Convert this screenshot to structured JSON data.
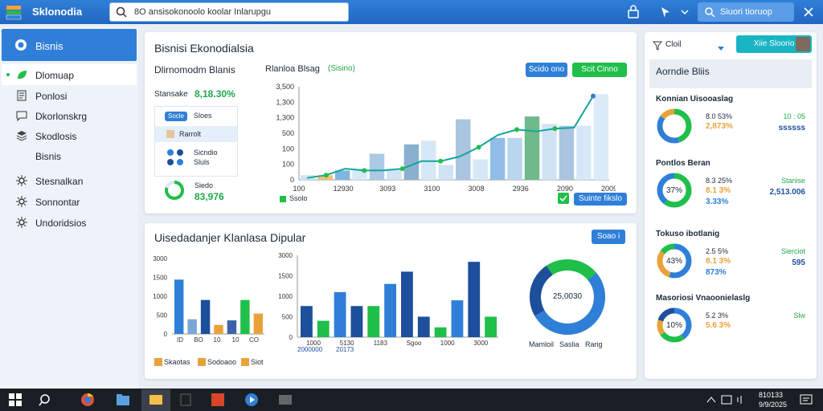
{
  "topbar": {
    "app_title": "Sklonodia",
    "search_text": "8O ansisokonoolo koolar Inlarupgu",
    "search2_text": "Siuori tioruop"
  },
  "sidebar": {
    "header": "Bisnis",
    "items": [
      {
        "label": "Dlomuap",
        "icon": "leaf-icon",
        "active": true
      },
      {
        "label": "Ponlosi",
        "icon": "document-icon"
      },
      {
        "label": "Dkorlonskrg",
        "icon": "chat-icon"
      },
      {
        "label": "Skodlosis",
        "icon": "layers-icon"
      },
      {
        "label": "Bisnis",
        "icon": ""
      },
      {
        "label": "Stesnalkan",
        "icon": "gear-icon"
      },
      {
        "label": "Sonnontar",
        "icon": "gear-icon"
      },
      {
        "label": "Undoridsios",
        "icon": "gear-icon"
      }
    ]
  },
  "card1": {
    "title": "Bisnisi Ekonodialsia",
    "subtitle": "Dlirnomodm Blanis",
    "stat_label": "Stansake",
    "stat_value": "8,18.30%",
    "mini_btn": "Socle",
    "mini_text": "Sloes",
    "row_label": "Rarrolt",
    "row2": "Sicndio",
    "row3": "Sluls",
    "gauge_label": "Siedo",
    "gauge_value": "83,976",
    "chart_title": "Rlanloa Blsag",
    "chart_tag": "(Sisino)",
    "btn_a": "Scido ono",
    "btn_b": "Scit Cinno",
    "legend": "Ssolo",
    "btn_c": "Suinte fikslo",
    "chart": {
      "type": "bar",
      "y_ticks": [
        "0",
        "100",
        "100",
        "500",
        "1,300",
        "1,300",
        "3,500"
      ],
      "x_ticks": [
        "100",
        "12930",
        "3093",
        "3100",
        "3008",
        "2936",
        "2090",
        "2009"
      ],
      "bars": [
        {
          "v": 0.05,
          "c": "#cfe3f5"
        },
        {
          "v": 0.05,
          "c": "#f2c078"
        },
        {
          "v": 0.1,
          "c": "#7fb5e0"
        },
        {
          "v": 0.12,
          "c": "#d6e8f6"
        },
        {
          "v": 0.28,
          "c": "#a9c9e4"
        },
        {
          "v": 0.12,
          "c": "#cfe3f5"
        },
        {
          "v": 0.38,
          "c": "#8ab0cf"
        },
        {
          "v": 0.42,
          "c": "#d6e8f6"
        },
        {
          "v": 0.16,
          "c": "#cfe3f5"
        },
        {
          "v": 0.65,
          "c": "#a9c5df"
        },
        {
          "v": 0.22,
          "c": "#d6e8f6"
        },
        {
          "v": 0.45,
          "c": "#8fbde6"
        },
        {
          "v": 0.45,
          "c": "#b8d6ee"
        },
        {
          "v": 0.68,
          "c": "#70b98a"
        },
        {
          "v": 0.6,
          "c": "#cfe3f5"
        },
        {
          "v": 0.58,
          "c": "#a9c5df"
        },
        {
          "v": 0.58,
          "c": "#d6e8f6"
        },
        {
          "v": 0.92,
          "c": "#dcebf8"
        }
      ],
      "line": [
        0.02,
        0.05,
        0.12,
        0.1,
        0.1,
        0.12,
        0.2,
        0.2,
        0.25,
        0.35,
        0.48,
        0.54,
        0.52,
        0.55,
        0.56,
        0.9
      ]
    }
  },
  "card2": {
    "title": "Uisedadanjer Klanlasa Dipular",
    "btn": "Soao i",
    "legend1": "Skaotas",
    "legend2": "Sodoaoo",
    "legend3": "Siot",
    "left_chart": {
      "y_ticks": [
        "3000",
        "1500",
        "1000",
        "500",
        "0"
      ],
      "x_ticks": [
        "ID",
        "BO",
        "10",
        "10",
        "CO"
      ],
      "bars": [
        {
          "v": 0.48,
          "c": "#2f7fd8"
        },
        {
          "v": 0.13,
          "c": "#7aa7d6"
        },
        {
          "v": 0.3,
          "c": "#1d4f9c"
        },
        {
          "v": 0.08,
          "c": "#e9a23a"
        },
        {
          "v": 0.12,
          "c": "#3d62a8"
        },
        {
          "v": 0.3,
          "c": "#1fbf4a"
        },
        {
          "v": 0.18,
          "c": "#e9a23a"
        }
      ]
    },
    "mid_chart": {
      "y_ticks": [
        "3000",
        "1500",
        "1000",
        "500",
        "0"
      ],
      "x_ticks": [
        "1000",
        "5130",
        "1183",
        "Sgoo",
        "1000",
        "3000"
      ],
      "bl1": "2000000",
      "bl2": "20173",
      "bars": [
        {
          "v": 0.38,
          "c": "#1d4f9c"
        },
        {
          "v": 0.2,
          "c": "#1fbf4a"
        },
        {
          "v": 0.55,
          "c": "#2f7fd8"
        },
        {
          "v": 0.38,
          "c": "#1d4f9c"
        },
        {
          "v": 0.38,
          "c": "#1fbf4a"
        },
        {
          "v": 0.65,
          "c": "#2f7fd8"
        },
        {
          "v": 0.8,
          "c": "#1d4f9c"
        },
        {
          "v": 0.25,
          "c": "#1d4f9c"
        },
        {
          "v": 0.12,
          "c": "#1fbf4a"
        },
        {
          "v": 0.45,
          "c": "#2f7fd8"
        },
        {
          "v": 0.92,
          "c": "#1d4f9c"
        },
        {
          "v": 0.25,
          "c": "#1fbf4a"
        }
      ]
    },
    "donut_value": "25,0030",
    "donut_labels": [
      "Mamloil",
      "Saslia",
      "Rarig"
    ]
  },
  "card3": {
    "dropdown": "Cloil",
    "action_btn": "Xiie Sloorio",
    "heading": "Aorndie Bliis",
    "sections": [
      {
        "title": "Konnian Uisooaslag",
        "center": "",
        "v1": "8.0 53%",
        "v2": "2,873%",
        "r1": "10 : 05",
        "r2": "ssssss",
        "colors": [
          "#1fbf4a",
          "#2f7fd8",
          "#e9a23a"
        ],
        "frac": [
          0.45,
          0.4,
          0.15
        ]
      },
      {
        "title": "Pontlos Beran",
        "center": "37%",
        "v1": "8.3 25%",
        "v2": "8.1 3%",
        "v3": "3.33%",
        "r1": "Stanise",
        "r2": "2,513.006",
        "colors": [
          "#1fbf4a",
          "#2f7fd8",
          "#2f7fd8"
        ],
        "frac": [
          0.6,
          0.3,
          0.1
        ]
      },
      {
        "title": "Tokuso ibotlanig",
        "center": "43%",
        "v1": "2.5 5%",
        "v2": "8.1 3%",
        "v3": "873%",
        "r1": "Sierciot",
        "r2": "595",
        "colors": [
          "#2f7fd8",
          "#e9a23a",
          "#1fbf4a"
        ],
        "frac": [
          0.55,
          0.3,
          0.15
        ]
      },
      {
        "title": "Masoriosi Vnaoonielaslg",
        "center": "10%",
        "v1": "5.2 3%",
        "v2": "5.6 3%",
        "v3": "",
        "r1": "Slw",
        "r2": "",
        "colors": [
          "#2f7fd8",
          "#1fbf4a",
          "#e9a23a",
          "#1d4f9c"
        ],
        "frac": [
          0.4,
          0.25,
          0.15,
          0.2
        ]
      }
    ]
  },
  "taskbar": {
    "time": "810133",
    "date": "9/9/2025"
  }
}
